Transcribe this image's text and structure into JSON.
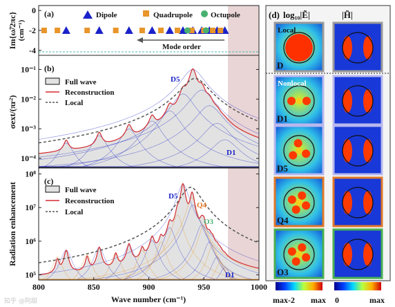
{
  "chart_data": [
    {
      "panel": "(a)",
      "type": "scatter",
      "ylabel": "Im{ω̃/2πc}",
      "yunit": "(cm⁻¹)",
      "ylim": [
        -4.5,
        0.5
      ],
      "yticks": [
        0,
        -2,
        -4
      ],
      "xlim": [
        800,
        1000
      ],
      "legend": [
        "Dipole",
        "Quadrupole",
        "Octupole"
      ],
      "annotation": "Mode order",
      "series": [
        {
          "name": "Dipole",
          "x": [
            825,
            855,
            882,
            903,
            919,
            931,
            940,
            948,
            955,
            962,
            969
          ],
          "y": [
            -2,
            -2,
            -2,
            -2,
            -2,
            -2,
            -2,
            -2,
            -2,
            -2,
            -2
          ]
        },
        {
          "name": "Quadrupole",
          "x": [
            805,
            817,
            844,
            870,
            894,
            911,
            926,
            939,
            950,
            958,
            965
          ],
          "y": [
            -2,
            -2,
            -2,
            -2,
            -2,
            -2,
            -2,
            -2,
            -2,
            -2,
            -2
          ]
        },
        {
          "name": "Octupole",
          "x": [
            935,
            952
          ],
          "y": [
            -2,
            -2
          ]
        }
      ]
    },
    {
      "panel": "(b)",
      "type": "line",
      "ylabel": "σext/(πr²)",
      "yscale": "log",
      "ylim": [
        5e-05,
        0.3
      ],
      "yticks": [
        "10⁻⁴",
        "10⁻³",
        "10⁻²",
        "10⁻¹"
      ],
      "legend": [
        "Full wave",
        "Reconstruction",
        "Local"
      ],
      "peaks_x": [
        825,
        855,
        882,
        903,
        919,
        931,
        940,
        948,
        955,
        962,
        969
      ],
      "peaks_y": [
        0.0003,
        0.00055,
        0.00095,
        0.0018,
        0.004,
        0.015,
        0.1,
        0.02,
        0.006,
        0.0015,
        0.0004
      ],
      "local_center": 942,
      "local_peak": 0.05,
      "mode_labels": [
        {
          "text": "D5",
          "x": 931
        },
        {
          "text": "D1",
          "x": 969
        }
      ]
    },
    {
      "panel": "(c)",
      "type": "line",
      "ylabel": "Radiation enhancement",
      "yscale": "log",
      "ylim": [
        70000,
        150000000
      ],
      "yticks": [
        "10⁵",
        "10⁶",
        "10⁷",
        "10⁸"
      ],
      "xlabel": "Wave number (cm⁻¹)",
      "xticks": [
        800,
        850,
        900,
        950,
        1000
      ],
      "legend": [
        "Full wave",
        "Reconstruction",
        "Local"
      ],
      "dipole_x": [
        825,
        855,
        882,
        903,
        919,
        931,
        940,
        948,
        955,
        962,
        969
      ],
      "dipole_y": [
        500000,
        600000,
        700000,
        1000000,
        2500000,
        50000000,
        12000000,
        3000000,
        900000,
        300000,
        120000
      ],
      "quad_x": [
        817,
        844,
        870,
        894,
        911,
        926,
        939,
        950,
        958,
        965
      ],
      "quad_y": [
        300000,
        350000,
        400000,
        500000,
        900000,
        6000000,
        20000000,
        3000000,
        700000,
        200000
      ],
      "local_center": 938,
      "local_peak": 40000000,
      "mode_labels": [
        {
          "text": "D5",
          "x": 931
        },
        {
          "text": "Q4",
          "x": 947
        },
        {
          "text": "O3",
          "x": 952
        },
        {
          "text": "D1",
          "x": 969
        }
      ]
    },
    {
      "panel": "(d)",
      "type": "heatmap",
      "column_titles": [
        "log₁₀|Ẽ|",
        "|H̃|"
      ],
      "rows": [
        {
          "label": "D",
          "tag": "Local",
          "border": "#9a9a9a"
        },
        {
          "label": "D1",
          "tag": "Nonlocal",
          "border": "#b8b8ee"
        },
        {
          "label": "D5",
          "tag": "",
          "border": "#b8b8ee"
        },
        {
          "label": "Q4",
          "tag": "",
          "border": "#e07828"
        },
        {
          "label": "O3",
          "tag": "",
          "border": "#48b050"
        }
      ],
      "colorbars": [
        {
          "min": "max-2",
          "max": "max"
        },
        {
          "min": "0",
          "max": "max"
        }
      ]
    }
  ],
  "watermark": "知乎 @阿甜",
  "colors": {
    "dipole": "#1a22c8",
    "quadrupole": "#e8952a",
    "octupole": "#48b070",
    "reconstruction": "#d42a30",
    "full_wave_fill": "#e2e2e2",
    "local": "#555555",
    "shade": "#e9d5d5",
    "cutline": "#48b8b0"
  }
}
